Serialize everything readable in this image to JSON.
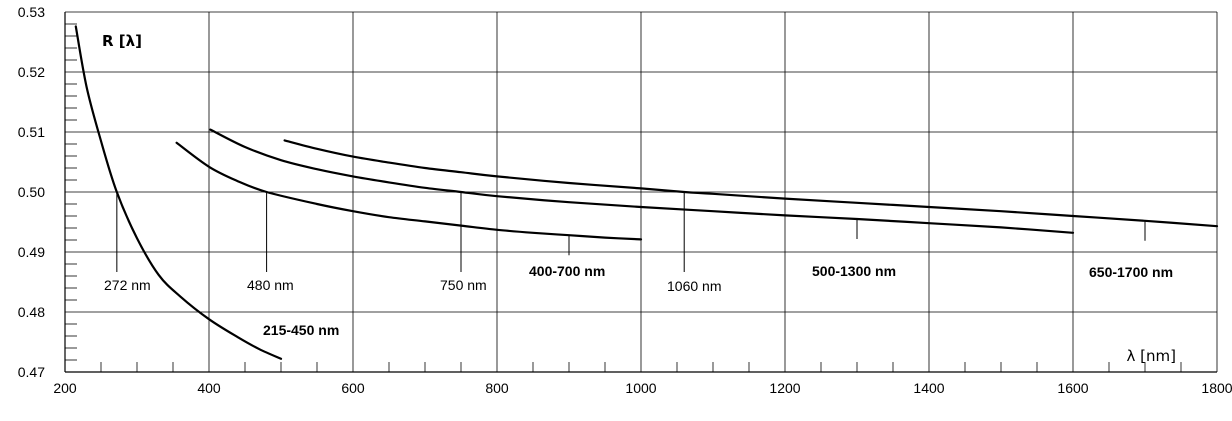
{
  "chart_data": {
    "type": "line",
    "title": "",
    "xlabel": "λ [nm]",
    "ylabel": "R [λ]",
    "xlim": [
      200,
      1800
    ],
    "ylim": [
      0.47,
      0.53
    ],
    "grid": true,
    "x_ticks": [
      200,
      400,
      600,
      800,
      1000,
      1200,
      1400,
      1600,
      1800
    ],
    "x_tick_labels": [
      "200",
      "400",
      "600",
      "800",
      "1000",
      "1200",
      "1400",
      "1600",
      "1800"
    ],
    "y_ticks": [
      0.47,
      0.48,
      0.49,
      0.5,
      0.51,
      0.52,
      0.53
    ],
    "y_tick_labels": [
      "0.47",
      "0.48",
      "0.49",
      "0.50",
      "0.51",
      "0.52",
      "0.53"
    ],
    "series": [
      {
        "name": "215-450 nm",
        "x": [
          215,
          230,
          250,
          272,
          300,
          330,
          360,
          400,
          440,
          470,
          500
        ],
        "y": [
          0.5276,
          0.5175,
          0.5085,
          0.5,
          0.4923,
          0.4862,
          0.4826,
          0.4788,
          0.4758,
          0.4738,
          0.4722
        ]
      },
      {
        "name": "400-700 nm",
        "x": [
          355,
          400,
          440,
          480,
          550,
          600,
          650,
          700,
          750,
          800,
          850,
          900,
          950,
          1000
        ],
        "y": [
          0.5082,
          0.5042,
          0.5018,
          0.5,
          0.498,
          0.4968,
          0.4958,
          0.4951,
          0.4944,
          0.4937,
          0.4932,
          0.4928,
          0.4924,
          0.4921
        ]
      },
      {
        "name": "500-1300 nm",
        "x": [
          402,
          450,
          500,
          550,
          600,
          650,
          700,
          750,
          800,
          900,
          1000,
          1100,
          1200,
          1300,
          1400,
          1500,
          1600
        ],
        "y": [
          0.5104,
          0.5075,
          0.5053,
          0.5038,
          0.5026,
          0.5016,
          0.5007,
          0.5,
          0.4993,
          0.4983,
          0.4975,
          0.4968,
          0.4961,
          0.4955,
          0.4948,
          0.4941,
          0.4932
        ]
      },
      {
        "name": "650-1700 nm",
        "x": [
          505,
          550,
          600,
          650,
          700,
          750,
          800,
          900,
          1000,
          1060,
          1100,
          1200,
          1300,
          1400,
          1500,
          1600,
          1700,
          1800
        ],
        "y": [
          0.5086,
          0.5072,
          0.5059,
          0.5049,
          0.504,
          0.5033,
          0.5026,
          0.5015,
          0.5006,
          0.5,
          0.4997,
          0.4989,
          0.4982,
          0.4975,
          0.4968,
          0.496,
          0.4952,
          0.4943
        ]
      }
    ],
    "crossing_markers": [
      {
        "label": "272 nm",
        "x": 272,
        "y": 0.5
      },
      {
        "label": "480 nm",
        "x": 480,
        "y": 0.5
      },
      {
        "label": "750 nm",
        "x": 750,
        "y": 0.5
      },
      {
        "label": "1060 nm",
        "x": 1060,
        "y": 0.5
      }
    ],
    "series_label_ticks": [
      {
        "x": 900,
        "series": 1
      },
      {
        "x": 1300,
        "series": 2
      },
      {
        "x": 1700,
        "series": 3
      }
    ]
  }
}
